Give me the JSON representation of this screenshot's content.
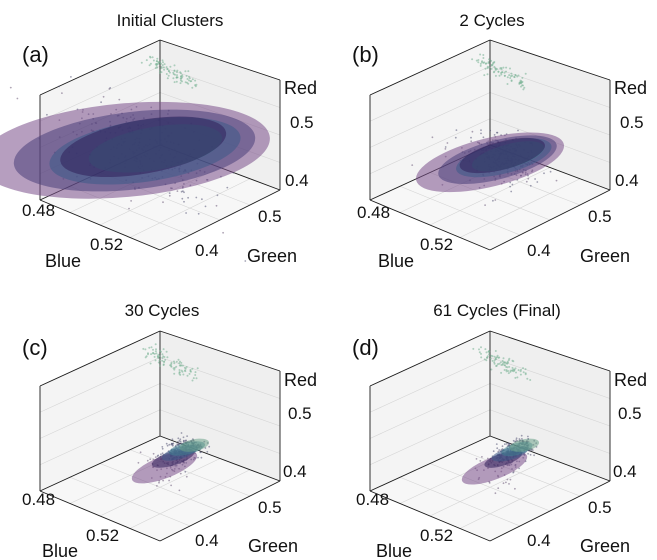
{
  "chart_data": [
    {
      "type": "scatter",
      "panel_letter": "(a)",
      "title": "Initial Clusters",
      "xlabel": "Blue",
      "ylabel": "Green",
      "zlabel": "Red",
      "x_ticks": [
        "0.48",
        "0.52"
      ],
      "y_ticks": [
        "0.4",
        "0.5"
      ],
      "z_ticks": [
        "0.4",
        "0.5"
      ],
      "clusters": [
        {
          "color": "#7a4f8a",
          "center": [
            0.48,
            0.45,
            0.47
          ],
          "spread": [
            0.055,
            0.065,
            0.08
          ]
        },
        {
          "color": "#4a3f7a",
          "center": [
            0.485,
            0.455,
            0.475
          ],
          "spread": [
            0.045,
            0.055,
            0.07
          ]
        },
        {
          "color": "#3c5a88",
          "center": [
            0.49,
            0.46,
            0.48
          ],
          "spread": [
            0.035,
            0.045,
            0.06
          ]
        },
        {
          "color": "#3f7f8f",
          "center": [
            0.495,
            0.465,
            0.49
          ],
          "spread": [
            0.025,
            0.03,
            0.045
          ]
        },
        {
          "color": "#2f1f5a",
          "center": [
            0.488,
            0.462,
            0.485
          ],
          "spread": [
            0.03,
            0.04,
            0.055
          ]
        }
      ]
    },
    {
      "type": "scatter",
      "panel_letter": "(b)",
      "title": "2 Cycles",
      "xlabel": "Blue",
      "ylabel": "Green",
      "zlabel": "Red",
      "x_ticks": [
        "0.48",
        "0.52"
      ],
      "y_ticks": [
        "0.4",
        "0.5"
      ],
      "z_ticks": [
        "0.4",
        "0.5"
      ],
      "clusters": [
        {
          "color": "#7a4f8a",
          "center": [
            0.5,
            0.46,
            0.47
          ],
          "spread": [
            0.025,
            0.04,
            0.055
          ]
        },
        {
          "color": "#4a3f7a",
          "center": [
            0.503,
            0.465,
            0.478
          ],
          "spread": [
            0.02,
            0.032,
            0.045
          ]
        },
        {
          "color": "#3c5a88",
          "center": [
            0.506,
            0.468,
            0.485
          ],
          "spread": [
            0.016,
            0.026,
            0.036
          ]
        },
        {
          "color": "#3f7f8f",
          "center": [
            0.508,
            0.47,
            0.49
          ],
          "spread": [
            0.012,
            0.02,
            0.028
          ]
        },
        {
          "color": "#2f1f5a",
          "center": [
            0.505,
            0.468,
            0.488
          ],
          "spread": [
            0.014,
            0.024,
            0.032
          ]
        }
      ]
    },
    {
      "type": "scatter",
      "panel_letter": "(c)",
      "title": "30 Cycles",
      "xlabel": "Blue",
      "ylabel": "Green",
      "zlabel": "Red",
      "x_ticks": [
        "0.48",
        "0.52"
      ],
      "y_ticks": [
        "0.4",
        "0.5"
      ],
      "z_ticks": [
        "0.4",
        "0.5"
      ],
      "clusters": [
        {
          "color": "#7a4f8a",
          "center": [
            0.505,
            0.455,
            0.45
          ],
          "spread": [
            0.01,
            0.02,
            0.03
          ]
        },
        {
          "color": "#2f1f5a",
          "center": [
            0.508,
            0.462,
            0.47
          ],
          "spread": [
            0.007,
            0.012,
            0.018
          ]
        },
        {
          "color": "#3c5a88",
          "center": [
            0.51,
            0.468,
            0.482
          ],
          "spread": [
            0.006,
            0.01,
            0.015
          ]
        },
        {
          "color": "#3f7f8f",
          "center": [
            0.512,
            0.475,
            0.492
          ],
          "spread": [
            0.006,
            0.01,
            0.013
          ]
        },
        {
          "color": "#6ea38a",
          "center": [
            0.514,
            0.482,
            0.5
          ],
          "spread": [
            0.005,
            0.008,
            0.01
          ]
        }
      ]
    },
    {
      "type": "scatter",
      "panel_letter": "(d)",
      "title": "61 Cycles (Final)",
      "xlabel": "Blue",
      "ylabel": "Green",
      "zlabel": "Red",
      "x_ticks": [
        "0.48",
        "0.52"
      ],
      "y_ticks": [
        "0.4",
        "0.5"
      ],
      "z_ticks": [
        "0.4",
        "0.5"
      ],
      "clusters": [
        {
          "color": "#7a4f8a",
          "center": [
            0.505,
            0.455,
            0.448
          ],
          "spread": [
            0.01,
            0.02,
            0.03
          ]
        },
        {
          "color": "#2f1f5a",
          "center": [
            0.508,
            0.462,
            0.468
          ],
          "spread": [
            0.006,
            0.011,
            0.016
          ]
        },
        {
          "color": "#3c5a88",
          "center": [
            0.51,
            0.468,
            0.48
          ],
          "spread": [
            0.006,
            0.01,
            0.014
          ]
        },
        {
          "color": "#3f7f8f",
          "center": [
            0.512,
            0.475,
            0.491
          ],
          "spread": [
            0.005,
            0.009,
            0.012
          ]
        },
        {
          "color": "#6ea38a",
          "center": [
            0.514,
            0.482,
            0.5
          ],
          "spread": [
            0.005,
            0.008,
            0.01
          ]
        }
      ]
    }
  ]
}
